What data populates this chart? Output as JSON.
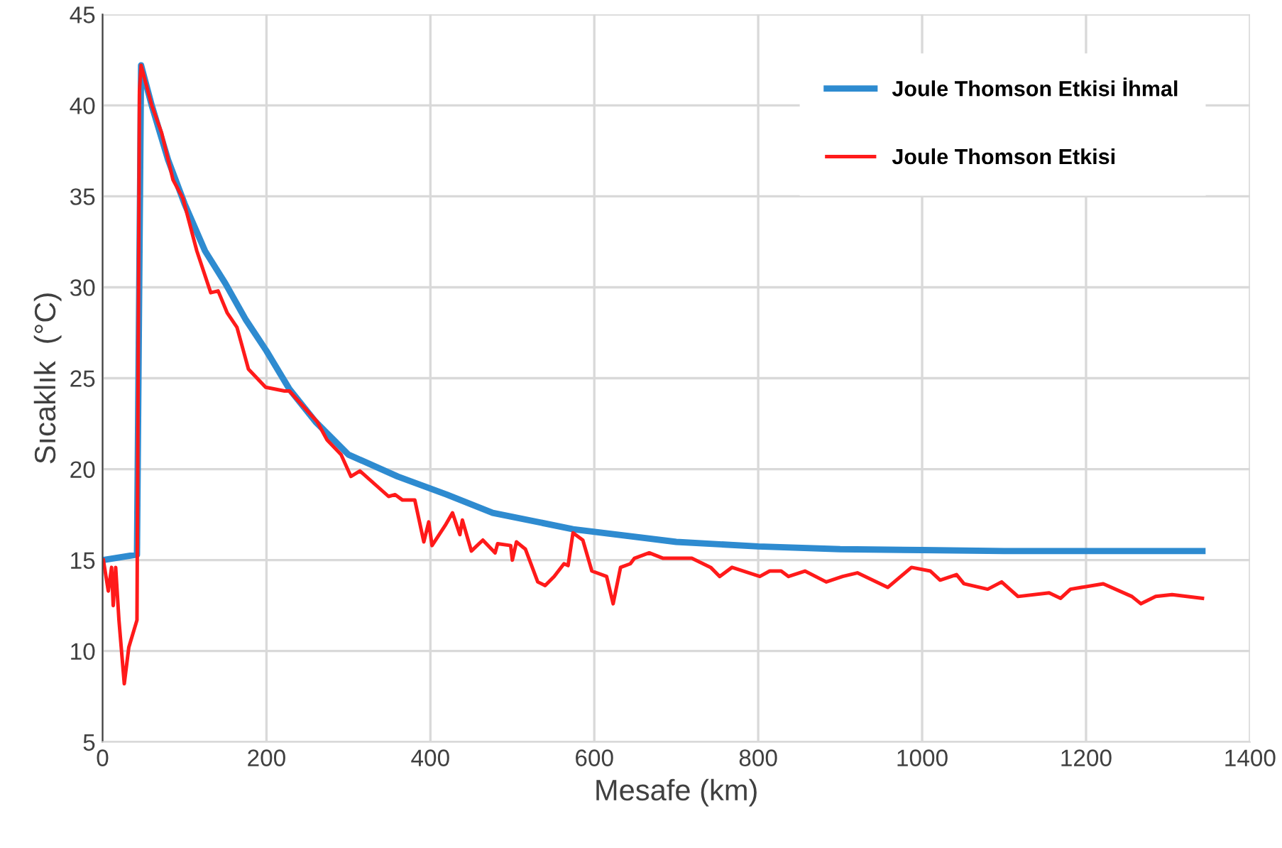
{
  "chart_data": {
    "type": "line",
    "xlabel": "Mesafe (km)",
    "ylabel": "Sıcaklık  (°C)",
    "xlim": [
      0,
      1400
    ],
    "xticks": [
      0,
      200,
      400,
      600,
      800,
      1000,
      1200,
      1400
    ],
    "ylim": [
      5,
      45
    ],
    "yticks": [
      5,
      10,
      15,
      20,
      25,
      30,
      35,
      40,
      45
    ],
    "grid": true,
    "legend": "top right",
    "marker": "none",
    "line_style": "solid",
    "series": [
      {
        "name": "Joule Thomson Etkisi İhmal",
        "color": "#2e8bd0",
        "x": [
          0,
          42,
          47,
          60,
          80,
          100,
          125,
          150,
          175,
          200,
          228,
          260,
          300,
          360,
          420,
          476,
          574,
          700,
          800,
          900,
          1000,
          1100,
          1342
        ],
        "values": [
          15.0,
          15.3,
          42.2,
          40.0,
          37.0,
          34.6,
          32.0,
          30.2,
          28.2,
          26.5,
          24.4,
          22.6,
          20.8,
          19.6,
          18.6,
          17.6,
          16.7,
          16.0,
          15.75,
          15.6,
          15.55,
          15.5,
          15.5
        ]
      },
      {
        "name": "Joule Thomson Etkisi",
        "color": "#ff1a1a",
        "x": [
          1,
          7,
          11,
          13,
          16,
          20,
          26.5,
          32,
          42,
          45,
          47,
          60,
          72,
          86,
          98,
          115,
          132,
          141,
          152,
          164,
          178,
          199,
          222,
          228,
          262,
          274,
          291,
          303,
          314,
          349,
          357,
          366,
          381,
          392,
          398,
          402,
          418,
          427,
          436,
          439,
          450,
          464,
          479,
          482,
          498,
          500,
          505,
          516,
          531,
          540,
          551,
          563,
          568,
          574,
          586,
          597,
          615,
          623,
          632,
          644,
          649,
          667,
          684,
          719,
          742,
          753,
          768,
          802,
          814,
          828,
          837,
          857,
          883,
          903,
          921,
          958,
          987,
          1010,
          1022,
          1042,
          1051,
          1080,
          1097,
          1117,
          1155,
          1169,
          1181,
          1221,
          1256,
          1267,
          1285,
          1305,
          1342
        ],
        "values": [
          15.0,
          13.3,
          14.6,
          12.5,
          14.6,
          11.7,
          8.2,
          10.2,
          11.7,
          40.8,
          42.2,
          40.0,
          38.5,
          35.9,
          34.9,
          32.0,
          29.7,
          29.8,
          28.6,
          27.8,
          25.5,
          24.5,
          24.3,
          24.3,
          22.6,
          21.6,
          20.8,
          19.6,
          19.9,
          18.5,
          18.6,
          18.3,
          18.3,
          16.0,
          17.1,
          15.8,
          16.9,
          17.6,
          16.4,
          17.2,
          15.5,
          16.1,
          15.4,
          15.9,
          15.8,
          15.0,
          16.0,
          15.6,
          13.8,
          13.6,
          14.1,
          14.8,
          14.7,
          16.5,
          16.1,
          14.4,
          14.1,
          12.6,
          14.6,
          14.8,
          15.1,
          15.4,
          15.1,
          15.1,
          14.6,
          14.1,
          14.6,
          14.1,
          14.4,
          14.4,
          14.1,
          14.4,
          13.8,
          14.1,
          14.3,
          13.5,
          14.6,
          14.4,
          13.9,
          14.2,
          13.7,
          13.4,
          13.8,
          13.0,
          13.2,
          12.9,
          13.4,
          13.7,
          13.0,
          12.6,
          13.0,
          13.1,
          12.9
        ]
      }
    ]
  }
}
